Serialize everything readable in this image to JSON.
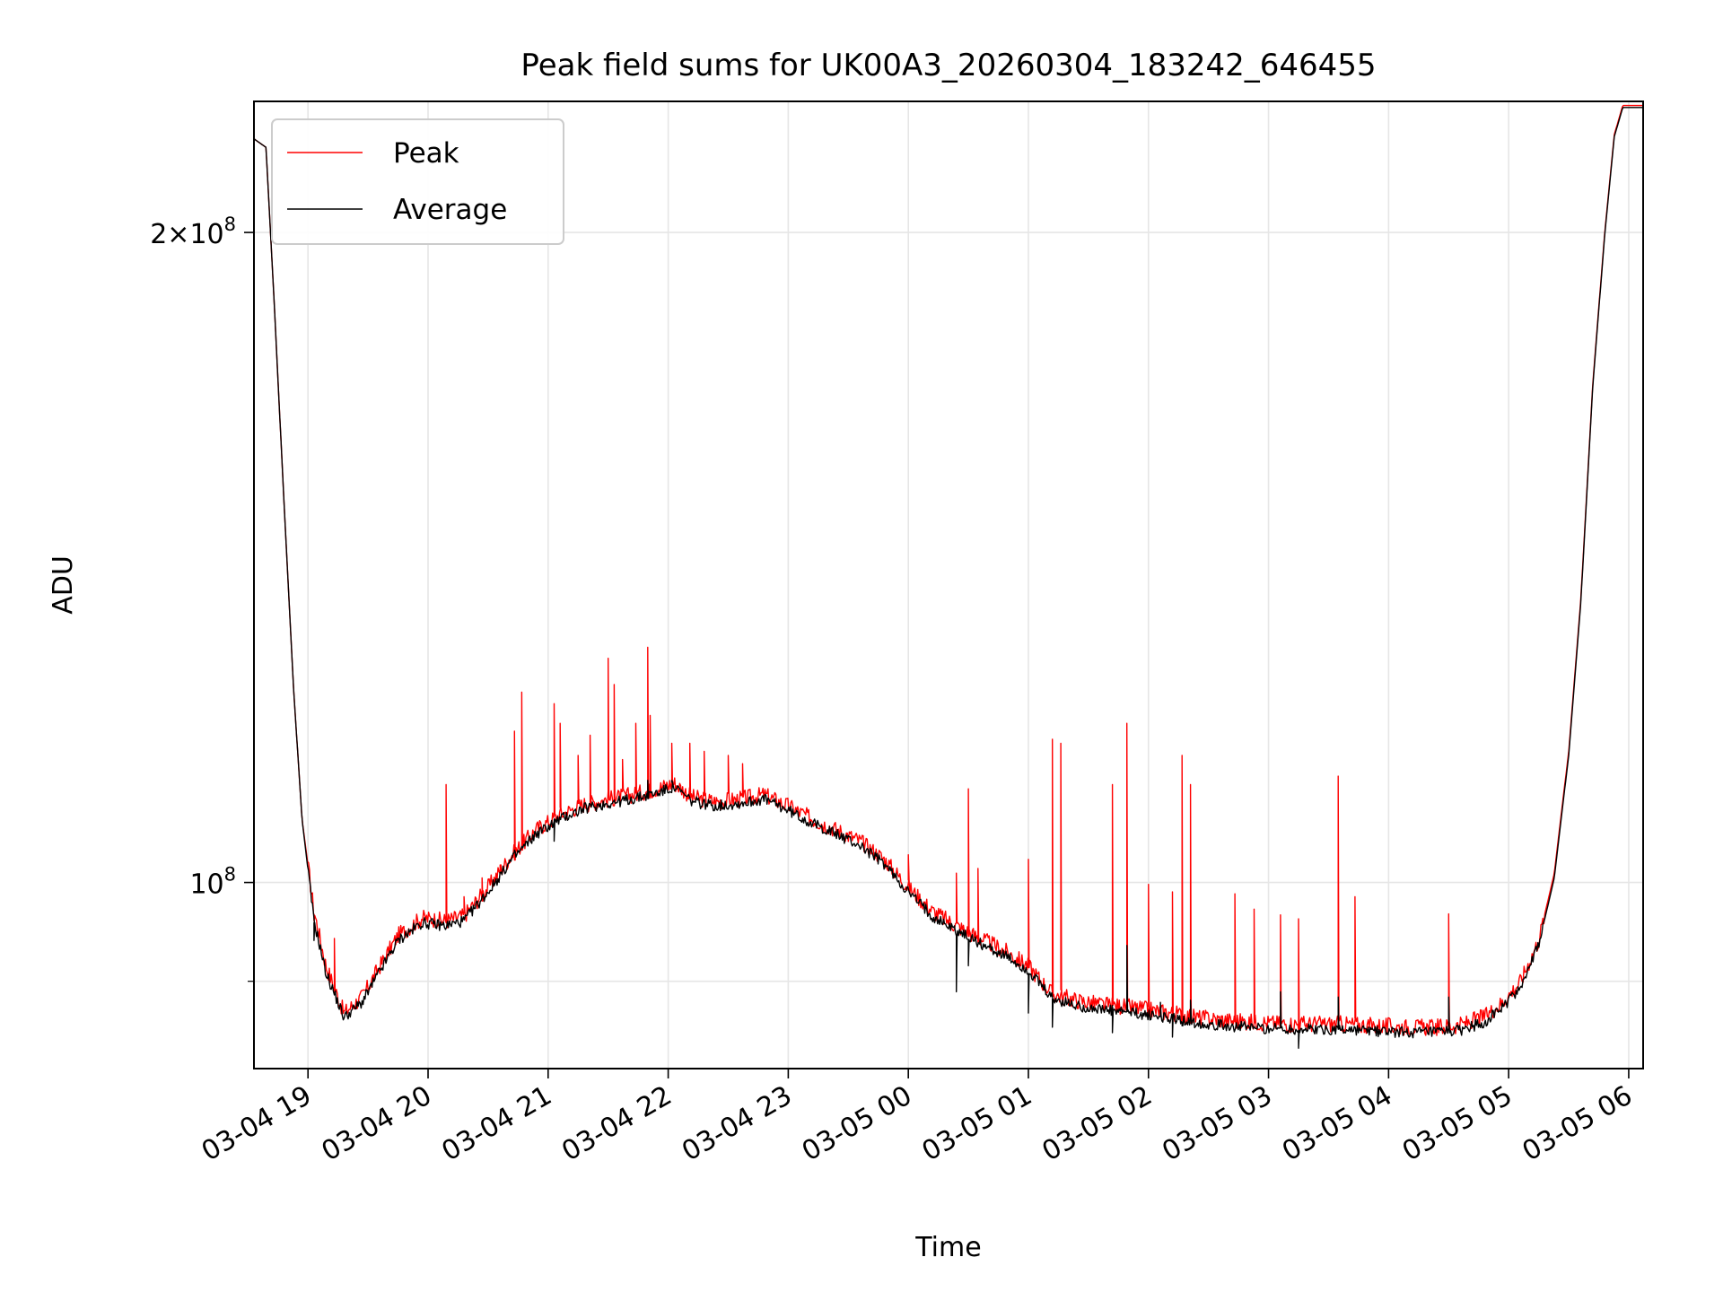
{
  "chart_data": {
    "type": "line",
    "title": "Peak field sums for UK00A3_20260304_183242_646455",
    "xlabel": "Time",
    "ylabel": "ADU",
    "yscale": "log",
    "ylim": [
      82000000,
      230000000
    ],
    "xlim": [
      18.55,
      30.12
    ],
    "grid": true,
    "legend_position": "upper-left",
    "x_ticks": [
      {
        "value": 19,
        "label": "03-04 19"
      },
      {
        "value": 20,
        "label": "03-04 20"
      },
      {
        "value": 21,
        "label": "03-04 21"
      },
      {
        "value": 22,
        "label": "03-04 22"
      },
      {
        "value": 23,
        "label": "03-04 23"
      },
      {
        "value": 24,
        "label": "03-05 00"
      },
      {
        "value": 25,
        "label": "03-05 01"
      },
      {
        "value": 26,
        "label": "03-05 02"
      },
      {
        "value": 27,
        "label": "03-05 03"
      },
      {
        "value": 28,
        "label": "03-05 04"
      },
      {
        "value": 29,
        "label": "03-05 05"
      },
      {
        "value": 30,
        "label": "03-05 06"
      }
    ],
    "y_ticks": [
      {
        "value": 100000000,
        "base": "10",
        "exp": "8",
        "label_style": "power"
      },
      {
        "value": 200000000,
        "mantissa": "2",
        "base": "10",
        "exp": "8",
        "label_style": "sci"
      }
    ],
    "y_minor_gridlines": [
      90000000
    ],
    "series": [
      {
        "name": "Peak",
        "color": "#ff0000",
        "baseline": [
          [
            18.55,
            221000000
          ],
          [
            18.65,
            219000000
          ],
          [
            18.72,
            185000000
          ],
          [
            18.8,
            150000000
          ],
          [
            18.88,
            123000000
          ],
          [
            18.95,
            107000000
          ],
          [
            19.05,
            97000000
          ],
          [
            19.15,
            91500000
          ],
          [
            19.3,
            87000000
          ],
          [
            19.45,
            88500000
          ],
          [
            19.6,
            91500000
          ],
          [
            19.75,
            94500000
          ],
          [
            19.95,
            96300000
          ],
          [
            20.15,
            96000000
          ],
          [
            20.3,
            96500000
          ],
          [
            20.5,
            99500000
          ],
          [
            20.7,
            103000000
          ],
          [
            20.9,
            105800000
          ],
          [
            21.1,
            107500000
          ],
          [
            21.3,
            108700000
          ],
          [
            21.5,
            109300000
          ],
          [
            21.7,
            109800000
          ],
          [
            21.9,
            110500000
          ],
          [
            22.05,
            111200000
          ],
          [
            22.2,
            109500000
          ],
          [
            22.4,
            109000000
          ],
          [
            22.6,
            109300000
          ],
          [
            22.8,
            109800000
          ],
          [
            23.0,
            108500000
          ],
          [
            23.2,
            107000000
          ],
          [
            23.4,
            105800000
          ],
          [
            23.6,
            104500000
          ],
          [
            23.8,
            102500000
          ],
          [
            24.0,
            99500000
          ],
          [
            24.2,
            97000000
          ],
          [
            24.4,
            95500000
          ],
          [
            24.6,
            94200000
          ],
          [
            24.8,
            93000000
          ],
          [
            25.0,
            91500000
          ],
          [
            25.2,
            88800000
          ],
          [
            25.4,
            88200000
          ],
          [
            25.6,
            87800000
          ],
          [
            25.8,
            87600000
          ],
          [
            26.0,
            87300000
          ],
          [
            26.2,
            87000000
          ],
          [
            26.4,
            86600000
          ],
          [
            26.6,
            86400000
          ],
          [
            26.8,
            86200000
          ],
          [
            27.0,
            86100000
          ],
          [
            27.2,
            86000000
          ],
          [
            27.4,
            86000000
          ],
          [
            27.6,
            86000000
          ],
          [
            27.8,
            85900000
          ],
          [
            28.0,
            85800000
          ],
          [
            28.2,
            85700000
          ],
          [
            28.4,
            85700000
          ],
          [
            28.6,
            85900000
          ],
          [
            28.8,
            86700000
          ],
          [
            28.95,
            88000000
          ],
          [
            29.1,
            90000000
          ],
          [
            29.25,
            94000000
          ],
          [
            29.38,
            101000000
          ],
          [
            29.5,
            115000000
          ],
          [
            29.6,
            135000000
          ],
          [
            29.7,
            170000000
          ],
          [
            29.8,
            200000000
          ],
          [
            29.88,
            222000000
          ],
          [
            29.95,
            229000000
          ],
          [
            30.12,
            229000000
          ]
        ],
        "spikes": [
          [
            19.05,
            96000000
          ],
          [
            19.22,
            94200000
          ],
          [
            20.15,
            111000000
          ],
          [
            20.3,
            98500000
          ],
          [
            20.45,
            100500000
          ],
          [
            20.6,
            101200000
          ],
          [
            20.72,
            117500000
          ],
          [
            20.78,
            122500000
          ],
          [
            21.05,
            121000000
          ],
          [
            21.1,
            118500000
          ],
          [
            21.25,
            114500000
          ],
          [
            21.35,
            117000000
          ],
          [
            21.5,
            127000000
          ],
          [
            21.55,
            123500000
          ],
          [
            21.62,
            114000000
          ],
          [
            21.73,
            118500000
          ],
          [
            21.83,
            128500000
          ],
          [
            21.85,
            119500000
          ],
          [
            22.03,
            116000000
          ],
          [
            22.18,
            116000000
          ],
          [
            22.3,
            115000000
          ],
          [
            22.5,
            114500000
          ],
          [
            22.62,
            113500000
          ],
          [
            24.0,
            103000000
          ],
          [
            24.4,
            101000000
          ],
          [
            24.5,
            110500000
          ],
          [
            24.58,
            101500000
          ],
          [
            25.0,
            102500000
          ],
          [
            25.2,
            116500000
          ],
          [
            25.27,
            116000000
          ],
          [
            25.7,
            111000000
          ],
          [
            25.82,
            118500000
          ],
          [
            26.0,
            99800000
          ],
          [
            26.2,
            99000000
          ],
          [
            26.28,
            114500000
          ],
          [
            26.35,
            111000000
          ],
          [
            26.72,
            98800000
          ],
          [
            26.88,
            97200000
          ],
          [
            27.1,
            96600000
          ],
          [
            27.25,
            96200000
          ],
          [
            27.58,
            112000000
          ],
          [
            27.72,
            98500000
          ],
          [
            28.5,
            96700000
          ]
        ]
      },
      {
        "name": "Average",
        "color": "#000000",
        "baseline": [
          [
            18.55,
            221000000
          ],
          [
            18.65,
            219000000
          ],
          [
            18.72,
            185000000
          ],
          [
            18.8,
            150000000
          ],
          [
            18.88,
            123000000
          ],
          [
            18.95,
            107000000
          ],
          [
            19.05,
            96000000
          ],
          [
            19.15,
            90800000
          ],
          [
            19.3,
            86600000
          ],
          [
            19.45,
            88000000
          ],
          [
            19.6,
            91000000
          ],
          [
            19.75,
            94000000
          ],
          [
            19.95,
            95800000
          ],
          [
            20.15,
            95500000
          ],
          [
            20.3,
            96000000
          ],
          [
            20.5,
            99000000
          ],
          [
            20.7,
            102500000
          ],
          [
            20.9,
            105300000
          ],
          [
            21.1,
            107000000
          ],
          [
            21.3,
            108200000
          ],
          [
            21.5,
            108800000
          ],
          [
            21.7,
            109300000
          ],
          [
            21.9,
            110000000
          ],
          [
            22.05,
            110700000
          ],
          [
            22.2,
            109000000
          ],
          [
            22.4,
            108500000
          ],
          [
            22.6,
            108800000
          ],
          [
            22.8,
            109300000
          ],
          [
            23.0,
            108000000
          ],
          [
            23.2,
            106500000
          ],
          [
            23.4,
            105300000
          ],
          [
            23.6,
            104000000
          ],
          [
            23.8,
            102000000
          ],
          [
            24.0,
            99000000
          ],
          [
            24.2,
            96500000
          ],
          [
            24.4,
            95000000
          ],
          [
            24.6,
            93700000
          ],
          [
            24.8,
            92500000
          ],
          [
            25.0,
            91000000
          ],
          [
            25.2,
            88300000
          ],
          [
            25.4,
            87700000
          ],
          [
            25.6,
            87300000
          ],
          [
            25.8,
            87100000
          ],
          [
            26.0,
            86800000
          ],
          [
            26.2,
            86500000
          ],
          [
            26.4,
            86100000
          ],
          [
            26.6,
            85900000
          ],
          [
            26.8,
            85700000
          ],
          [
            27.0,
            85600000
          ],
          [
            27.2,
            85500000
          ],
          [
            27.4,
            85500000
          ],
          [
            27.6,
            85500000
          ],
          [
            27.8,
            85400000
          ],
          [
            28.0,
            85300000
          ],
          [
            28.2,
            85200000
          ],
          [
            28.4,
            85200000
          ],
          [
            28.6,
            85400000
          ],
          [
            28.8,
            86200000
          ],
          [
            28.95,
            87500000
          ],
          [
            29.1,
            89500000
          ],
          [
            29.25,
            93500000
          ],
          [
            29.38,
            100500000
          ],
          [
            29.5,
            114500000
          ],
          [
            29.6,
            134500000
          ],
          [
            29.7,
            169500000
          ],
          [
            29.8,
            199500000
          ],
          [
            29.88,
            221500000
          ],
          [
            29.95,
            228500000
          ],
          [
            30.12,
            228500000
          ]
        ],
        "spikes": [
          [
            19.05,
            94000000
          ],
          [
            20.72,
            103500000
          ],
          [
            21.05,
            104500000
          ],
          [
            21.5,
            108500000
          ],
          [
            21.83,
            111500000
          ],
          [
            22.03,
            111500000
          ],
          [
            24.4,
            89000000
          ],
          [
            24.5,
            91500000
          ],
          [
            25.0,
            87000000
          ],
          [
            25.2,
            85700000
          ],
          [
            25.7,
            85200000
          ],
          [
            25.82,
            93500000
          ],
          [
            26.1,
            88000000
          ],
          [
            26.2,
            84800000
          ],
          [
            26.28,
            86000000
          ],
          [
            26.35,
            88200000
          ],
          [
            27.1,
            89000000
          ],
          [
            27.25,
            83800000
          ],
          [
            27.58,
            88500000
          ],
          [
            28.5,
            88500000
          ]
        ]
      }
    ]
  }
}
